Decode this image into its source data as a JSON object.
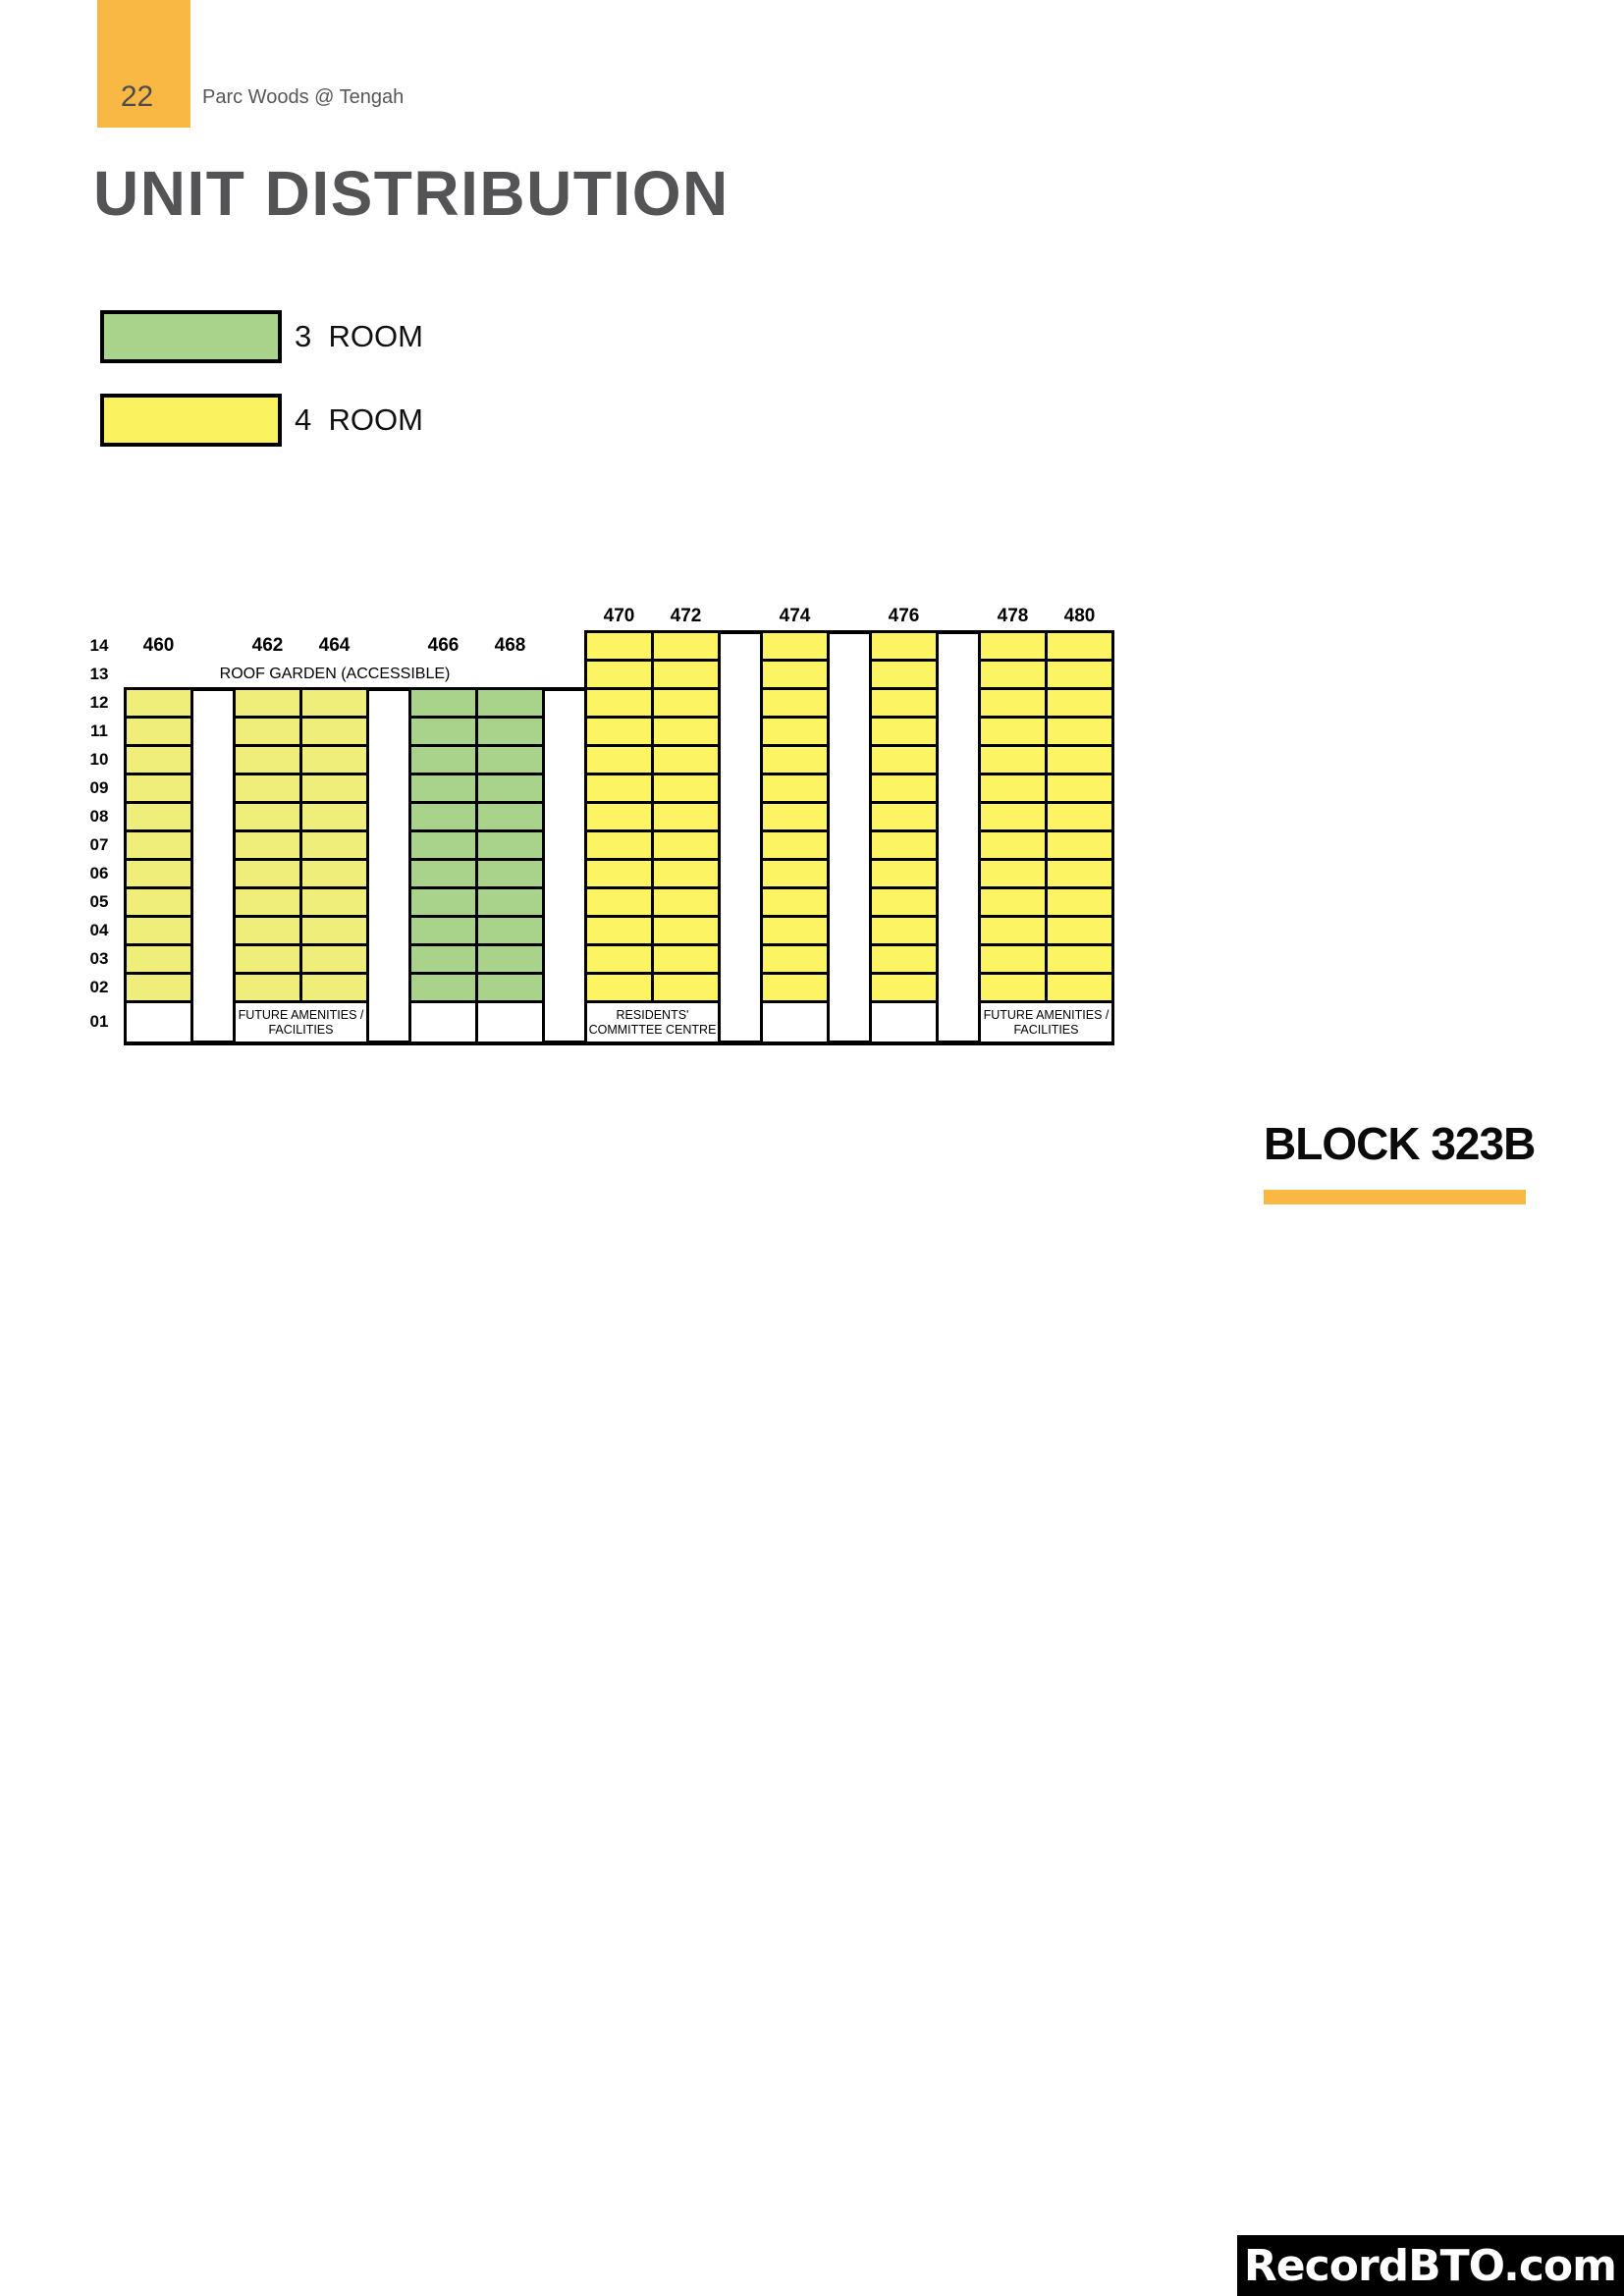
{
  "page": {
    "number": "22",
    "project": "Parc Woods @ Tengah",
    "title": "UNIT DISTRIBUTION",
    "block_label": "BLOCK 323B",
    "watermark": "RecordBTO.com"
  },
  "colors": {
    "accent_orange": "#f9b843",
    "green": "#a9d28a",
    "yellow_legend": "#fbf25f",
    "yellow_left": "#f0ee7b",
    "yellow_right": "#fcf463",
    "title_gray": "#545457",
    "line_black": "#000000"
  },
  "legend": {
    "items": [
      {
        "label": "3  ROOM",
        "color_key": "green"
      },
      {
        "label": "4  ROOM",
        "color_key": "yellow_legend"
      }
    ]
  },
  "grid": {
    "floor_labels": [
      "14",
      "13",
      "12",
      "11",
      "10",
      "09",
      "08",
      "07",
      "06",
      "05",
      "04",
      "03",
      "02",
      "01"
    ],
    "roof_garden_label": "ROOF GARDEN (ACCESSIBLE)",
    "groups": [
      {
        "stacks": [
          "460"
        ],
        "room_type": "4 ROOM",
        "color_key": "yellow_left",
        "top_floor": 12,
        "bottom_floor": 2,
        "ground": [
          {
            "span": 1,
            "label": ""
          }
        ]
      },
      {
        "stacks": [
          "462",
          "464"
        ],
        "room_type": "4 ROOM",
        "color_key": "yellow_left",
        "top_floor": 12,
        "bottom_floor": 2,
        "ground": [
          {
            "span": 2,
            "label": "FUTURE AMENITIES /\nFACILITIES"
          }
        ]
      },
      {
        "stacks": [
          "466",
          "468"
        ],
        "room_type": "3 ROOM",
        "color_key": "green",
        "top_floor": 12,
        "bottom_floor": 2,
        "ground": [
          {
            "span": 1,
            "label": ""
          },
          {
            "span": 1,
            "label": ""
          }
        ]
      },
      {
        "stacks": [
          "470",
          "472"
        ],
        "room_type": "4 ROOM",
        "color_key": "yellow_right",
        "top_floor": 14,
        "bottom_floor": 2,
        "ground": [
          {
            "span": 2,
            "label": "RESIDENTS'\nCOMMITTEE CENTRE"
          }
        ]
      },
      {
        "stacks": [
          "474"
        ],
        "room_type": "4 ROOM",
        "color_key": "yellow_right",
        "top_floor": 14,
        "bottom_floor": 2,
        "ground": [
          {
            "span": 1,
            "label": ""
          }
        ]
      },
      {
        "stacks": [
          "476"
        ],
        "room_type": "4 ROOM",
        "color_key": "yellow_right",
        "top_floor": 14,
        "bottom_floor": 2,
        "ground": [
          {
            "span": 1,
            "label": ""
          }
        ]
      },
      {
        "stacks": [
          "478",
          "480"
        ],
        "room_type": "4 ROOM",
        "color_key": "yellow_right",
        "top_floor": 14,
        "bottom_floor": 2,
        "ground": [
          {
            "span": 2,
            "label": "FUTURE AMENITIES /\nFACILITIES"
          }
        ]
      }
    ]
  }
}
